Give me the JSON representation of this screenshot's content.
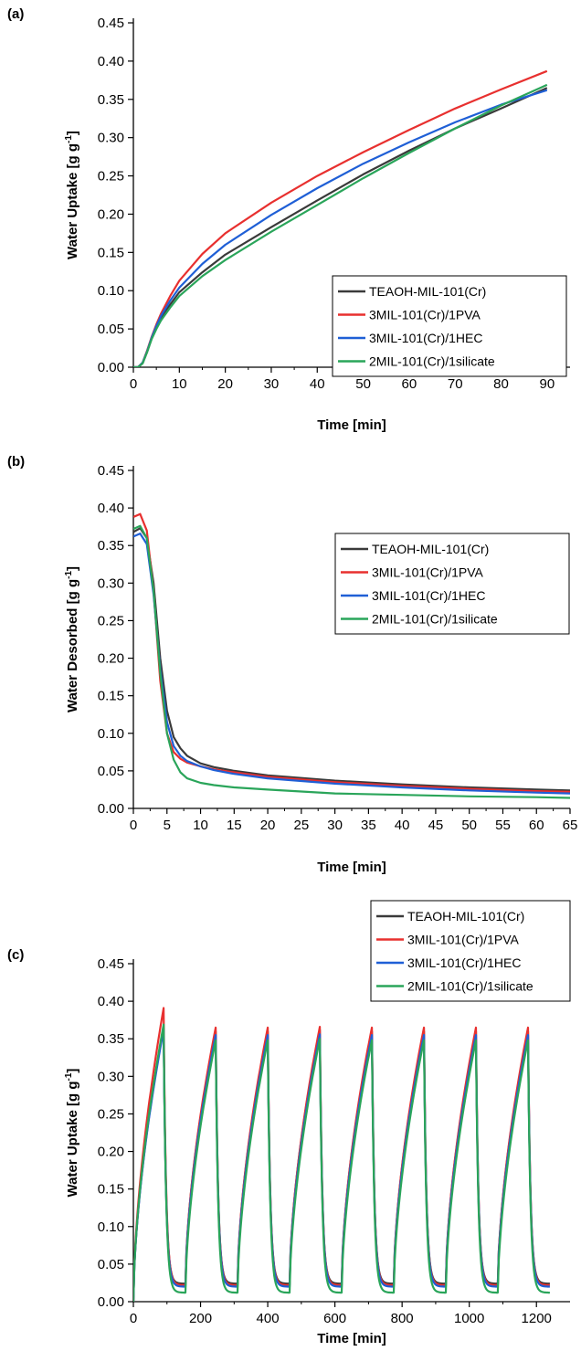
{
  "chart_data": [
    {
      "panel_label": "(a)",
      "type": "line",
      "xlabel": "Time [min]",
      "ylabel": "Water Uptake [g g-1]",
      "ylabel_main": "Water Uptake [g g",
      "ylabel_sup": "-1",
      "ylabel_tail": "]",
      "xlim": [
        0,
        95
      ],
      "ylim": [
        0,
        0.45
      ],
      "xticks": [
        "0",
        "10",
        "20",
        "30",
        "40",
        "50",
        "60",
        "70",
        "80",
        "90"
      ],
      "yticks": [
        "0.00",
        "0.05",
        "0.10",
        "0.15",
        "0.20",
        "0.25",
        "0.30",
        "0.35",
        "0.40",
        "0.45"
      ],
      "legend_position": "bottom-right",
      "series": [
        {
          "name": "TEAOH-MIL-101(Cr)",
          "color": "#3a3a3a",
          "x": [
            0,
            1,
            2,
            3,
            4,
            5,
            6,
            8,
            10,
            15,
            20,
            30,
            40,
            50,
            60,
            70,
            80,
            90
          ],
          "y": [
            0,
            0,
            0.005,
            0.02,
            0.038,
            0.052,
            0.064,
            0.082,
            0.098,
            0.124,
            0.147,
            0.183,
            0.218,
            0.252,
            0.283,
            0.312,
            0.338,
            0.365
          ]
        },
        {
          "name": "3MIL-101(Cr)/1PVA",
          "color": "#e8302f",
          "x": [
            0,
            1,
            2,
            3,
            4,
            5,
            6,
            8,
            10,
            15,
            20,
            30,
            40,
            50,
            60,
            70,
            80,
            90
          ],
          "y": [
            0,
            0,
            0.006,
            0.022,
            0.04,
            0.056,
            0.07,
            0.093,
            0.113,
            0.148,
            0.175,
            0.215,
            0.25,
            0.281,
            0.31,
            0.338,
            0.363,
            0.387
          ]
        },
        {
          "name": "3MIL-101(Cr)/1HEC",
          "color": "#1f5fd6",
          "x": [
            0,
            1,
            2,
            3,
            4,
            5,
            6,
            8,
            10,
            15,
            20,
            30,
            40,
            50,
            60,
            70,
            80,
            90
          ],
          "y": [
            0,
            0,
            0.006,
            0.021,
            0.039,
            0.054,
            0.067,
            0.087,
            0.104,
            0.135,
            0.16,
            0.199,
            0.234,
            0.266,
            0.294,
            0.32,
            0.343,
            0.362
          ]
        },
        {
          "name": "2MIL-101(Cr)/1silicate",
          "color": "#2aa55a",
          "x": [
            0,
            1,
            2,
            3,
            4,
            5,
            6,
            8,
            10,
            15,
            20,
            30,
            40,
            50,
            60,
            70,
            80,
            90
          ],
          "y": [
            0,
            0,
            0.005,
            0.02,
            0.037,
            0.05,
            0.061,
            0.078,
            0.093,
            0.119,
            0.14,
            0.177,
            0.212,
            0.247,
            0.28,
            0.312,
            0.342,
            0.369
          ]
        }
      ]
    },
    {
      "panel_label": "(b)",
      "type": "line",
      "xlabel": "Time [min]",
      "ylabel": "Water Desorbed [g g-1]",
      "ylabel_main": "Water Desorbed [g g",
      "ylabel_sup": "-1",
      "ylabel_tail": "]",
      "xlim": [
        0,
        65
      ],
      "ylim": [
        0,
        0.45
      ],
      "xticks": [
        "0",
        "5",
        "10",
        "15",
        "20",
        "25",
        "30",
        "35",
        "40",
        "45",
        "50",
        "55",
        "60",
        "65"
      ],
      "yticks": [
        "0.00",
        "0.05",
        "0.10",
        "0.15",
        "0.20",
        "0.25",
        "0.30",
        "0.35",
        "0.40",
        "0.45"
      ],
      "legend_position": "right",
      "series": [
        {
          "name": "TEAOH-MIL-101(Cr)",
          "color": "#3a3a3a",
          "x": [
            0,
            1,
            2,
            3,
            4,
            5,
            6,
            7,
            8,
            10,
            12,
            15,
            20,
            30,
            40,
            50,
            60,
            65
          ],
          "y": [
            0.368,
            0.373,
            0.36,
            0.3,
            0.2,
            0.13,
            0.095,
            0.08,
            0.07,
            0.06,
            0.055,
            0.05,
            0.044,
            0.037,
            0.032,
            0.028,
            0.025,
            0.024
          ]
        },
        {
          "name": "3MIL-101(Cr)/1PVA",
          "color": "#e8302f",
          "x": [
            0,
            1,
            2,
            3,
            4,
            5,
            6,
            7,
            8,
            10,
            12,
            15,
            20,
            30,
            40,
            50,
            60,
            65
          ],
          "y": [
            0.388,
            0.392,
            0.37,
            0.29,
            0.17,
            0.1,
            0.075,
            0.066,
            0.061,
            0.056,
            0.052,
            0.048,
            0.042,
            0.035,
            0.03,
            0.026,
            0.023,
            0.022
          ]
        },
        {
          "name": "3MIL-101(Cr)/1HEC",
          "color": "#1f5fd6",
          "x": [
            0,
            1,
            2,
            3,
            4,
            5,
            6,
            7,
            8,
            10,
            12,
            15,
            20,
            30,
            40,
            50,
            60,
            65
          ],
          "y": [
            0.362,
            0.366,
            0.352,
            0.285,
            0.185,
            0.115,
            0.083,
            0.07,
            0.063,
            0.056,
            0.051,
            0.046,
            0.04,
            0.033,
            0.028,
            0.024,
            0.021,
            0.02
          ]
        },
        {
          "name": "2MIL-101(Cr)/1silicate",
          "color": "#2aa55a",
          "x": [
            0,
            1,
            2,
            3,
            4,
            5,
            6,
            7,
            8,
            10,
            12,
            15,
            20,
            30,
            40,
            50,
            60,
            65
          ],
          "y": [
            0.372,
            0.376,
            0.36,
            0.29,
            0.18,
            0.1,
            0.065,
            0.048,
            0.04,
            0.034,
            0.031,
            0.028,
            0.025,
            0.02,
            0.018,
            0.016,
            0.015,
            0.014
          ]
        }
      ]
    },
    {
      "panel_label": "(c)",
      "type": "line",
      "xlabel": "Time [min]",
      "ylabel": "Water Uptake [g g-1]",
      "ylabel_main": "Water Uptake [g g",
      "ylabel_sup": "-1",
      "ylabel_tail": "]",
      "xlim": [
        0,
        1300
      ],
      "ylim": [
        0,
        0.45
      ],
      "xticks": [
        "0",
        "200",
        "400",
        "600",
        "800",
        "1000",
        "1200"
      ],
      "yticks": [
        "0.00",
        "0.05",
        "0.10",
        "0.15",
        "0.20",
        "0.25",
        "0.30",
        "0.35",
        "0.40",
        "0.45"
      ],
      "legend_position": "top-right (outside)",
      "cycles": 8,
      "cycle_period_min": 155,
      "adsorption_min": 90,
      "desorption_min": 65,
      "series": [
        {
          "name": "TEAOH-MIL-101(Cr)",
          "color": "#3a3a3a",
          "cycle_peaks": [
            0.365,
            0.36,
            0.36,
            0.362,
            0.36,
            0.36,
            0.36,
            0.36
          ],
          "cycle_min": 0.024
        },
        {
          "name": "3MIL-101(Cr)/1PVA",
          "color": "#e8302f",
          "cycle_peaks": [
            0.391,
            0.365,
            0.365,
            0.366,
            0.365,
            0.365,
            0.365,
            0.365
          ],
          "cycle_min": 0.022
        },
        {
          "name": "3MIL-101(Cr)/1HEC",
          "color": "#1f5fd6",
          "cycle_peaks": [
            0.362,
            0.355,
            0.355,
            0.356,
            0.355,
            0.355,
            0.355,
            0.355
          ],
          "cycle_min": 0.02
        },
        {
          "name": "2MIL-101(Cr)/1silicate",
          "color": "#2aa55a",
          "cycle_peaks": [
            0.369,
            0.348,
            0.348,
            0.35,
            0.348,
            0.348,
            0.348,
            0.348
          ],
          "cycle_min": 0.012
        }
      ]
    }
  ]
}
